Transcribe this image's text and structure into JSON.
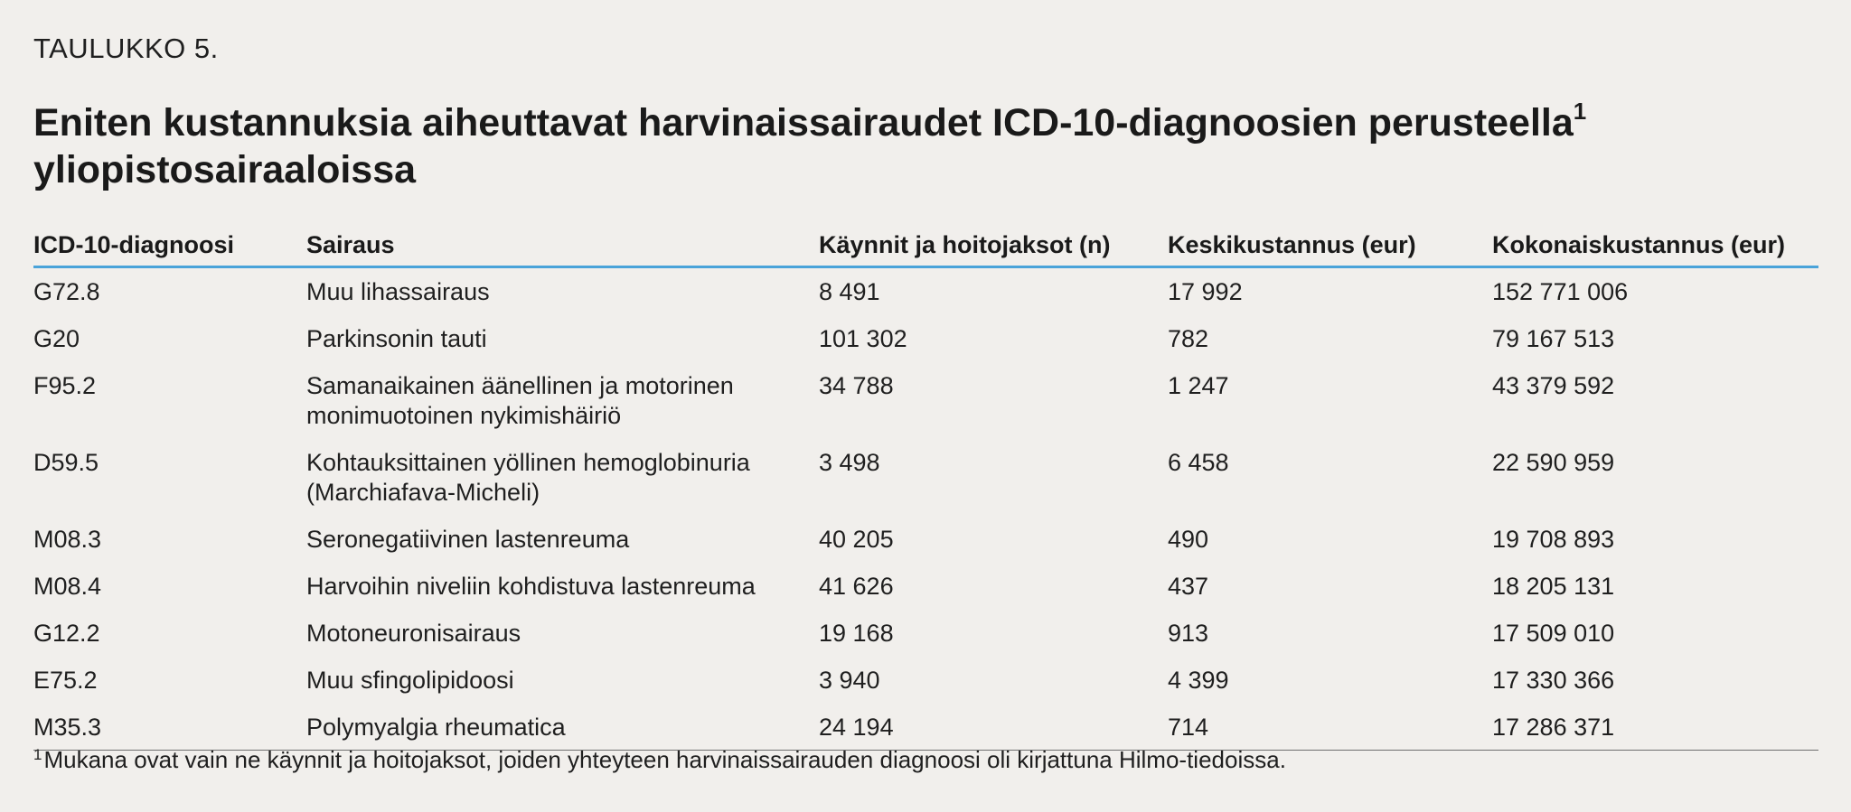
{
  "label": "TAULUKKO 5.",
  "title": {
    "text": "Eniten kustannuksia aiheuttavat harvinaissairaudet ICD-10-diagnoosien perusteella",
    "superscript": "1",
    "line2": "yliopistosairaaloissa"
  },
  "table": {
    "headers": [
      "ICD-10-diagnoosi",
      "Sairaus",
      "Käynnit ja hoitojaksot (n)",
      "Keskikustannus (eur)",
      "Kokonaiskustannus (eur)"
    ],
    "rows": [
      [
        "G72.8",
        "Muu lihassairaus",
        "8 491",
        "17 992",
        "152 771 006"
      ],
      [
        "G20",
        "Parkinsonin tauti",
        "101 302",
        "782",
        "79 167 513"
      ],
      [
        "F95.2",
        "Samanaikainen äänellinen ja motorinen monimuotoinen nykimishäiriö",
        "34 788",
        "1 247",
        "43 379 592"
      ],
      [
        "D59.5",
        "Kohtauksittainen yöllinen hemoglobinuria (Marchiafava-Micheli)",
        "3 498",
        "6 458",
        "22 590 959"
      ],
      [
        "M08.3",
        "Seronegatiivinen lastenreuma",
        "40 205",
        "490",
        "19 708 893"
      ],
      [
        "M08.4",
        "Harvoihin niveliin kohdistuva lastenreuma",
        "41 626",
        "437",
        "18 205 131"
      ],
      [
        "G12.2",
        "Motoneuronisairaus",
        "19 168",
        "913",
        "17 509 010"
      ],
      [
        "E75.2",
        "Muu sfingolipidoosi",
        "3 940",
        "4 399",
        "17 330 366"
      ],
      [
        "M35.3",
        "Polymyalgia rheumatica",
        "24 194",
        "714",
        "17 286 371"
      ]
    ]
  },
  "footnote": {
    "marker": "1",
    "text": "Mukana ovat vain ne käynnit ja hoitojaksot, joiden yhteyteen harvinaissairauden diagnoosi oli kirjattuna Hilmo-tiedoissa."
  },
  "colors": {
    "background": "#f1efec",
    "header_rule": "#4aa3d9",
    "text": "#1f1f1f"
  }
}
